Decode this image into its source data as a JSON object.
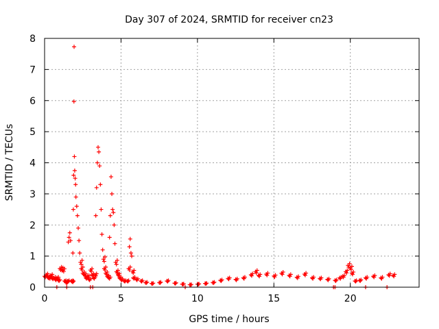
{
  "chart_data": {
    "type": "scatter",
    "title": "Day 307 of 2024, SRMTID for receiver cn23",
    "xlabel": "GPS time / hours",
    "ylabel": "SRMTID / TECUs",
    "xlim": [
      0,
      24.5
    ],
    "ylim": [
      0,
      8
    ],
    "xticks": [
      0,
      5,
      10,
      15,
      20
    ],
    "yticks": [
      0,
      1,
      2,
      3,
      4,
      5,
      6,
      7,
      8
    ],
    "grid": true,
    "marker": "+",
    "series": [
      {
        "name": "cn23",
        "color": "#ff0000",
        "points": [
          [
            0.0,
            0.35
          ],
          [
            0.1,
            0.4
          ],
          [
            0.2,
            0.32
          ],
          [
            0.3,
            0.3
          ],
          [
            0.4,
            0.38
          ],
          [
            0.5,
            0.28
          ],
          [
            0.6,
            0.3
          ],
          [
            0.7,
            0.25
          ],
          [
            0.8,
            0.3
          ],
          [
            0.9,
            0.22
          ],
          [
            1.0,
            0.6
          ],
          [
            1.1,
            0.58
          ],
          [
            1.2,
            0.55
          ],
          [
            1.3,
            0.2
          ],
          [
            1.4,
            0.15
          ],
          [
            1.5,
            0.2
          ],
          [
            1.55,
            1.45
          ],
          [
            1.6,
            1.6
          ],
          [
            1.65,
            1.75
          ],
          [
            1.7,
            1.5
          ],
          [
            1.75,
            0.2
          ],
          [
            1.8,
            0.18
          ],
          [
            1.85,
            1.1
          ],
          [
            1.88,
            2.5
          ],
          [
            1.9,
            3.6
          ],
          [
            1.92,
            5.97
          ],
          [
            1.93,
            7.73
          ],
          [
            1.95,
            4.2
          ],
          [
            1.97,
            3.75
          ],
          [
            2.0,
            3.5
          ],
          [
            2.03,
            3.3
          ],
          [
            2.05,
            2.9
          ],
          [
            2.1,
            2.6
          ],
          [
            2.15,
            2.3
          ],
          [
            2.2,
            1.9
          ],
          [
            2.25,
            1.5
          ],
          [
            2.3,
            1.1
          ],
          [
            2.35,
            0.8
          ],
          [
            2.4,
            0.6
          ],
          [
            2.5,
            0.45
          ],
          [
            2.6,
            0.4
          ],
          [
            2.7,
            0.3
          ],
          [
            2.8,
            0.35
          ],
          [
            2.9,
            0.25
          ],
          [
            3.0,
            0.55
          ],
          [
            3.1,
            0.4
          ],
          [
            3.2,
            0.3
          ],
          [
            3.3,
            0.4
          ],
          [
            3.35,
            2.3
          ],
          [
            3.4,
            3.2
          ],
          [
            3.45,
            4.0
          ],
          [
            3.5,
            4.5
          ],
          [
            3.55,
            4.35
          ],
          [
            3.6,
            3.9
          ],
          [
            3.65,
            3.3
          ],
          [
            3.7,
            2.5
          ],
          [
            3.75,
            1.7
          ],
          [
            3.8,
            1.2
          ],
          [
            3.85,
            0.9
          ],
          [
            3.9,
            0.6
          ],
          [
            4.0,
            0.45
          ],
          [
            4.1,
            0.35
          ],
          [
            4.2,
            0.3
          ],
          [
            4.25,
            1.6
          ],
          [
            4.3,
            2.3
          ],
          [
            4.35,
            3.55
          ],
          [
            4.4,
            3.0
          ],
          [
            4.45,
            2.5
          ],
          [
            4.5,
            2.4
          ],
          [
            4.55,
            2.0
          ],
          [
            4.6,
            1.4
          ],
          [
            4.65,
            0.8
          ],
          [
            4.7,
            0.5
          ],
          [
            4.8,
            0.4
          ],
          [
            4.9,
            0.3
          ],
          [
            5.0,
            0.25
          ],
          [
            5.2,
            0.2
          ],
          [
            5.4,
            0.2
          ],
          [
            5.5,
            0.6
          ],
          [
            5.55,
            1.3
          ],
          [
            5.6,
            1.55
          ],
          [
            5.65,
            1.1
          ],
          [
            5.7,
            1.0
          ],
          [
            5.75,
            0.5
          ],
          [
            5.8,
            0.3
          ],
          [
            6.0,
            0.25
          ],
          [
            6.3,
            0.2
          ],
          [
            6.6,
            0.15
          ],
          [
            7.0,
            0.12
          ],
          [
            7.5,
            0.15
          ],
          [
            8.0,
            0.2
          ],
          [
            8.5,
            0.13
          ],
          [
            9.0,
            0.1
          ],
          [
            9.5,
            0.08
          ],
          [
            10.0,
            0.1
          ],
          [
            10.5,
            0.12
          ],
          [
            11.0,
            0.15
          ],
          [
            11.5,
            0.22
          ],
          [
            12.0,
            0.28
          ],
          [
            12.5,
            0.25
          ],
          [
            13.0,
            0.3
          ],
          [
            13.5,
            0.4
          ],
          [
            13.8,
            0.5
          ],
          [
            14.0,
            0.38
          ],
          [
            14.5,
            0.42
          ],
          [
            15.0,
            0.36
          ],
          [
            15.5,
            0.45
          ],
          [
            16.0,
            0.38
          ],
          [
            16.5,
            0.32
          ],
          [
            17.0,
            0.42
          ],
          [
            17.5,
            0.3
          ],
          [
            18.0,
            0.28
          ],
          [
            18.5,
            0.25
          ],
          [
            19.0,
            0.22
          ],
          [
            19.3,
            0.3
          ],
          [
            19.5,
            0.35
          ],
          [
            19.7,
            0.5
          ],
          [
            19.85,
            0.7
          ],
          [
            20.0,
            0.62
          ],
          [
            20.1,
            0.45
          ],
          [
            20.3,
            0.2
          ],
          [
            20.6,
            0.22
          ],
          [
            21.0,
            0.3
          ],
          [
            21.5,
            0.35
          ],
          [
            22.0,
            0.3
          ],
          [
            22.5,
            0.4
          ],
          [
            22.8,
            0.38
          ]
        ]
      }
    ],
    "zero_points_x": [
      0.8,
      1.45,
      3.0,
      3.15,
      9.2,
      18.9,
      19.0,
      21.0,
      22.4
    ]
  }
}
